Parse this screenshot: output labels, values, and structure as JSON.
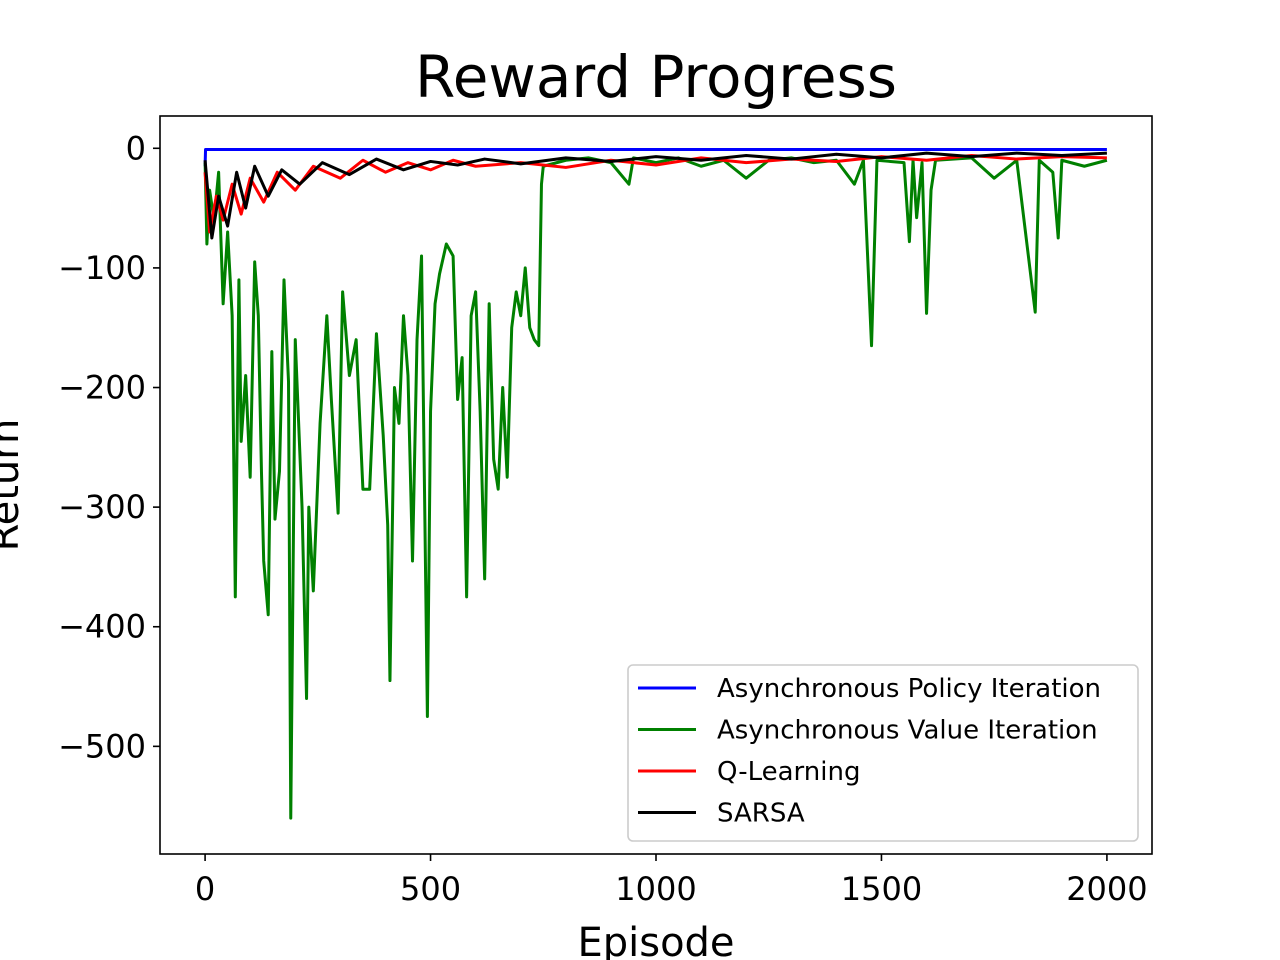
{
  "chart_data": {
    "type": "line",
    "title": "Reward Progress",
    "xlabel": "Episode",
    "ylabel": "Return",
    "xlim": [
      -100,
      2100
    ],
    "ylim": [
      -590,
      27
    ],
    "x_ticks": [
      0,
      500,
      1000,
      1500,
      2000
    ],
    "y_ticks": [
      0,
      -100,
      -200,
      -300,
      -400,
      -500
    ],
    "x_tick_labels": [
      "0",
      "500",
      "1000",
      "1500",
      "2000"
    ],
    "y_tick_labels": [
      "0",
      "−100",
      "−200",
      "−300",
      "−400",
      "−500"
    ],
    "legend_position": "lower-right",
    "series": [
      {
        "name": "Asynchronous Policy Iteration",
        "color": "#0000ff",
        "points": [
          [
            0,
            -15
          ],
          [
            1,
            -1
          ],
          [
            2000,
            -1
          ]
        ]
      },
      {
        "name": "Asynchronous Value Iteration",
        "color": "#008000",
        "points": [
          [
            0,
            -12
          ],
          [
            4,
            -80
          ],
          [
            10,
            -35
          ],
          [
            20,
            -60
          ],
          [
            30,
            -20
          ],
          [
            40,
            -130
          ],
          [
            50,
            -70
          ],
          [
            60,
            -140
          ],
          [
            67,
            -375
          ],
          [
            75,
            -110
          ],
          [
            80,
            -245
          ],
          [
            90,
            -190
          ],
          [
            100,
            -275
          ],
          [
            110,
            -95
          ],
          [
            118,
            -140
          ],
          [
            125,
            -270
          ],
          [
            130,
            -345
          ],
          [
            140,
            -390
          ],
          [
            148,
            -170
          ],
          [
            155,
            -310
          ],
          [
            165,
            -270
          ],
          [
            175,
            -110
          ],
          [
            185,
            -195
          ],
          [
            190,
            -560
          ],
          [
            200,
            -160
          ],
          [
            215,
            -300
          ],
          [
            225,
            -460
          ],
          [
            230,
            -300
          ],
          [
            240,
            -370
          ],
          [
            255,
            -230
          ],
          [
            270,
            -140
          ],
          [
            280,
            -210
          ],
          [
            295,
            -305
          ],
          [
            305,
            -120
          ],
          [
            320,
            -190
          ],
          [
            335,
            -160
          ],
          [
            350,
            -285
          ],
          [
            365,
            -285
          ],
          [
            380,
            -155
          ],
          [
            395,
            -240
          ],
          [
            405,
            -315
          ],
          [
            410,
            -445
          ],
          [
            420,
            -200
          ],
          [
            430,
            -230
          ],
          [
            440,
            -140
          ],
          [
            450,
            -190
          ],
          [
            460,
            -345
          ],
          [
            470,
            -160
          ],
          [
            480,
            -90
          ],
          [
            493,
            -475
          ],
          [
            500,
            -220
          ],
          [
            510,
            -130
          ],
          [
            520,
            -105
          ],
          [
            535,
            -80
          ],
          [
            550,
            -90
          ],
          [
            560,
            -210
          ],
          [
            570,
            -175
          ],
          [
            580,
            -375
          ],
          [
            590,
            -140
          ],
          [
            600,
            -120
          ],
          [
            610,
            -220
          ],
          [
            620,
            -360
          ],
          [
            630,
            -130
          ],
          [
            640,
            -260
          ],
          [
            650,
            -285
          ],
          [
            660,
            -200
          ],
          [
            670,
            -275
          ],
          [
            680,
            -150
          ],
          [
            690,
            -120
          ],
          [
            700,
            -140
          ],
          [
            710,
            -100
          ],
          [
            720,
            -150
          ],
          [
            730,
            -160
          ],
          [
            740,
            -165
          ],
          [
            746,
            -30
          ],
          [
            750,
            -15
          ],
          [
            800,
            -10
          ],
          [
            850,
            -8
          ],
          [
            900,
            -12
          ],
          [
            940,
            -30
          ],
          [
            950,
            -8
          ],
          [
            1000,
            -12
          ],
          [
            1050,
            -8
          ],
          [
            1100,
            -15
          ],
          [
            1150,
            -10
          ],
          [
            1200,
            -25
          ],
          [
            1250,
            -10
          ],
          [
            1300,
            -8
          ],
          [
            1350,
            -12
          ],
          [
            1400,
            -10
          ],
          [
            1440,
            -30
          ],
          [
            1460,
            -10
          ],
          [
            1478,
            -165
          ],
          [
            1490,
            -10
          ],
          [
            1550,
            -12
          ],
          [
            1562,
            -78
          ],
          [
            1570,
            -10
          ],
          [
            1578,
            -58
          ],
          [
            1590,
            -12
          ],
          [
            1600,
            -138
          ],
          [
            1610,
            -35
          ],
          [
            1620,
            -10
          ],
          [
            1700,
            -8
          ],
          [
            1750,
            -25
          ],
          [
            1800,
            -10
          ],
          [
            1841,
            -137
          ],
          [
            1850,
            -10
          ],
          [
            1880,
            -20
          ],
          [
            1892,
            -75
          ],
          [
            1900,
            -10
          ],
          [
            1950,
            -15
          ],
          [
            2000,
            -10
          ]
        ]
      },
      {
        "name": "Q-Learning",
        "color": "#ff0000",
        "points": [
          [
            0,
            -20
          ],
          [
            10,
            -70
          ],
          [
            25,
            -40
          ],
          [
            40,
            -60
          ],
          [
            60,
            -30
          ],
          [
            80,
            -55
          ],
          [
            100,
            -25
          ],
          [
            130,
            -45
          ],
          [
            160,
            -20
          ],
          [
            200,
            -35
          ],
          [
            240,
            -15
          ],
          [
            300,
            -25
          ],
          [
            350,
            -10
          ],
          [
            400,
            -20
          ],
          [
            450,
            -12
          ],
          [
            500,
            -18
          ],
          [
            550,
            -10
          ],
          [
            600,
            -15
          ],
          [
            700,
            -12
          ],
          [
            800,
            -16
          ],
          [
            900,
            -10
          ],
          [
            1000,
            -14
          ],
          [
            1100,
            -8
          ],
          [
            1200,
            -12
          ],
          [
            1300,
            -9
          ],
          [
            1400,
            -11
          ],
          [
            1500,
            -7
          ],
          [
            1600,
            -10
          ],
          [
            1700,
            -6
          ],
          [
            1800,
            -9
          ],
          [
            1900,
            -7
          ],
          [
            2000,
            -8
          ]
        ]
      },
      {
        "name": "SARSA",
        "color": "#000000",
        "points": [
          [
            0,
            -10
          ],
          [
            15,
            -75
          ],
          [
            30,
            -40
          ],
          [
            50,
            -65
          ],
          [
            70,
            -20
          ],
          [
            90,
            -50
          ],
          [
            110,
            -15
          ],
          [
            140,
            -40
          ],
          [
            170,
            -18
          ],
          [
            210,
            -30
          ],
          [
            260,
            -12
          ],
          [
            320,
            -22
          ],
          [
            380,
            -9
          ],
          [
            440,
            -18
          ],
          [
            500,
            -11
          ],
          [
            560,
            -14
          ],
          [
            620,
            -9
          ],
          [
            700,
            -13
          ],
          [
            800,
            -8
          ],
          [
            900,
            -11
          ],
          [
            1000,
            -7
          ],
          [
            1100,
            -10
          ],
          [
            1200,
            -6
          ],
          [
            1300,
            -9
          ],
          [
            1400,
            -5
          ],
          [
            1500,
            -8
          ],
          [
            1600,
            -4
          ],
          [
            1700,
            -7
          ],
          [
            1800,
            -4
          ],
          [
            1900,
            -6
          ],
          [
            2000,
            -4
          ]
        ]
      }
    ]
  }
}
